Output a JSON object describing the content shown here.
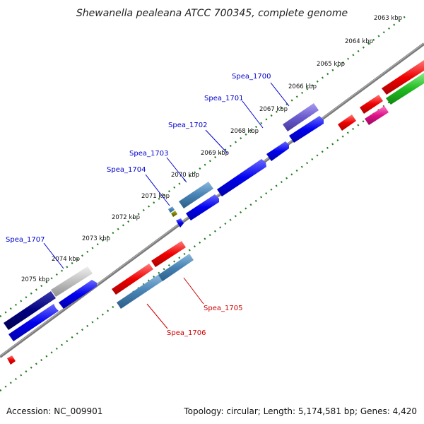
{
  "title": "Shewanella pealeana ATCC 700345, complete genome",
  "footer": {
    "accession": "Accession: NC_009901",
    "summary": "Topology: circular; Length: 5,174,581 bp; Genes: 4,420"
  },
  "scale_ticks": [
    "2063 kbp",
    "2064 kbp",
    "2065 kbp",
    "2066 kbp",
    "2067 kbp",
    "2068 kbp",
    "2069 kbp",
    "2070 kbp",
    "2071 kbp",
    "2072 kbp",
    "2073 kbp",
    "2074 kbp",
    "2075 kbp"
  ],
  "gene_labels": {
    "top": [
      "Spea_1700",
      "Spea_1701",
      "Spea_1702",
      "Spea_1703",
      "Spea_1704",
      "Spea_1707"
    ],
    "bottom": [
      "Spea_1705",
      "Spea_1706"
    ]
  },
  "colors": {
    "label_forward": "#0000cc",
    "label_reverse": "#cc0000",
    "backbone": "#7a7a7a",
    "ticks": "#1e7d1e",
    "cds_blue": "#0000ee",
    "cds_red": "#ee0000",
    "cds_steel": "#4682b4",
    "cds_navy": "#000080",
    "cds_gray": "#c0c0c0",
    "cds_slate": "#6a5acd",
    "cds_green": "#22bb22",
    "cds_magenta": "#dd1188",
    "cds_olive": "#808000"
  }
}
